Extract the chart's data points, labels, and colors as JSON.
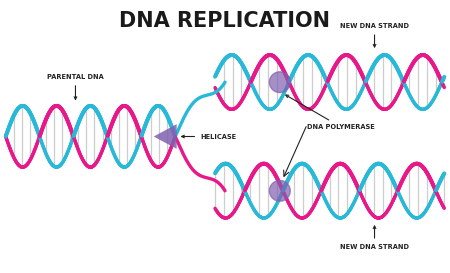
{
  "title": "DNA REPLICATION",
  "title_fontsize": 15,
  "title_fontweight": "bold",
  "bg_color": "#ffffff",
  "cyan_color": "#29b9d8",
  "magenta_color": "#e8188a",
  "purple_color": "#8060b0",
  "gray_color": "#c8c8c8",
  "labels": {
    "parental_dna": "PARENTAL DNA",
    "helicase": "HELICASE",
    "dna_polymerase": "DNA POLYMERASE",
    "new_dna_top": "NEW DNA STRAND",
    "new_dna_bottom": "NEW DNA STRAND"
  },
  "label_fontsize": 4.8,
  "label_fontweight": "bold",
  "figsize": [
    4.5,
    2.73
  ],
  "dpi": 100,
  "xlim": [
    0,
    9
  ],
  "ylim": [
    0,
    5.5
  ]
}
